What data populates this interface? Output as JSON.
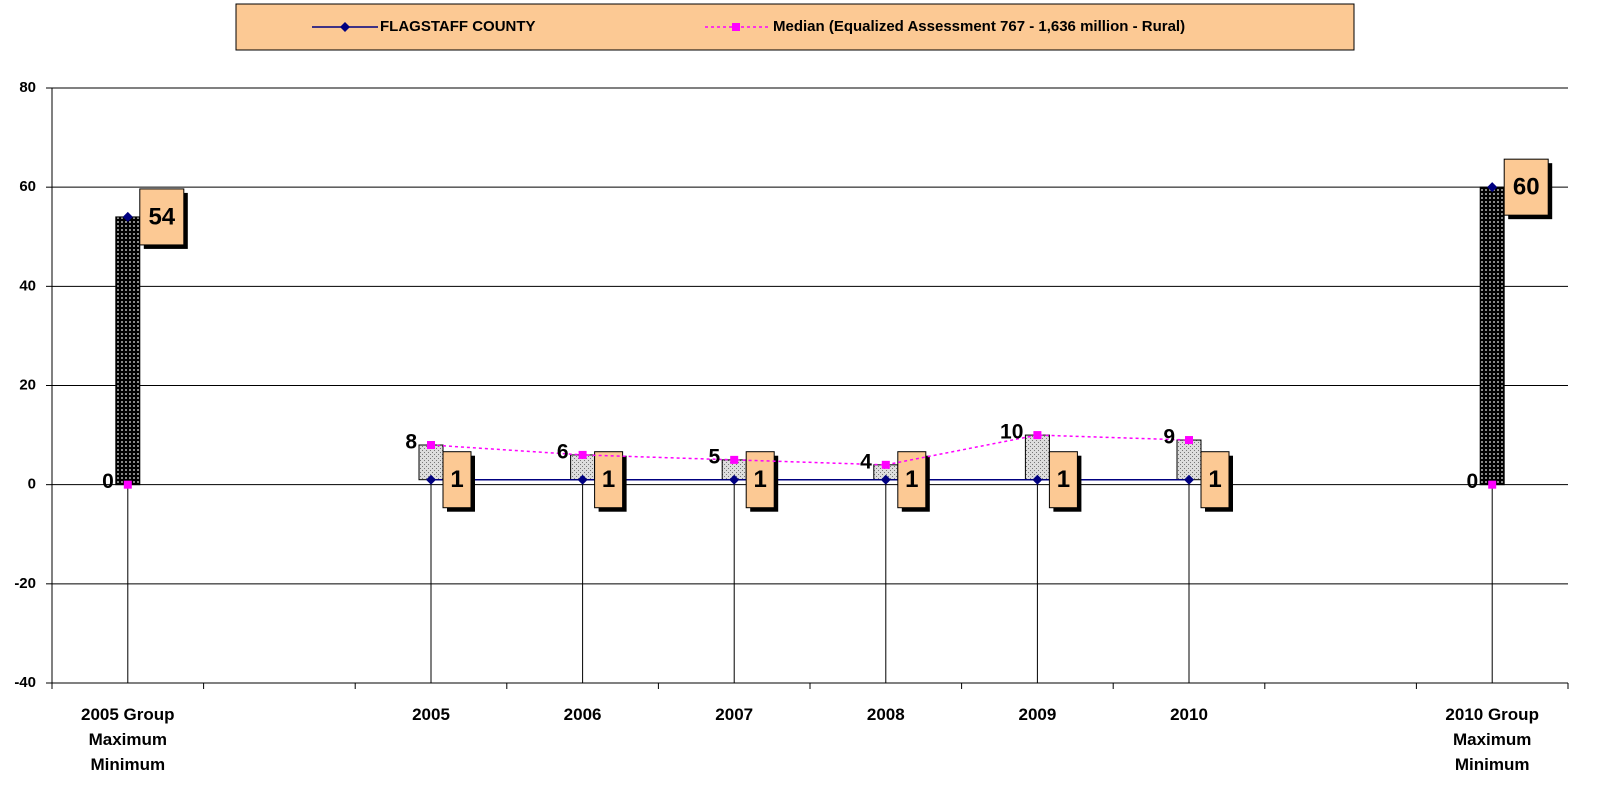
{
  "chart_data": {
    "type": "line",
    "categories": [
      "2005 Group\nMaximum\nMinimum",
      null,
      "2005",
      "2006",
      "2007",
      "2008",
      "2009",
      "2010",
      null,
      "2010 Group\nMaximum\nMinimum"
    ],
    "series": [
      {
        "name": "FLAGSTAFF COUNTY",
        "color": "#000080",
        "values": [
          54,
          null,
          1,
          1,
          1,
          1,
          1,
          1,
          null,
          60
        ]
      },
      {
        "name": "Median (Equalized Assessment 767 - 1,636 million - Rural)",
        "color": "#ff00ff",
        "values": [
          0,
          null,
          8,
          6,
          5,
          4,
          10,
          9,
          null,
          0
        ]
      }
    ],
    "ylim": [
      -40,
      80
    ],
    "yticks": [
      -40,
      -20,
      0,
      20,
      40,
      60,
      80
    ],
    "grid": true,
    "legend": "top"
  }
}
